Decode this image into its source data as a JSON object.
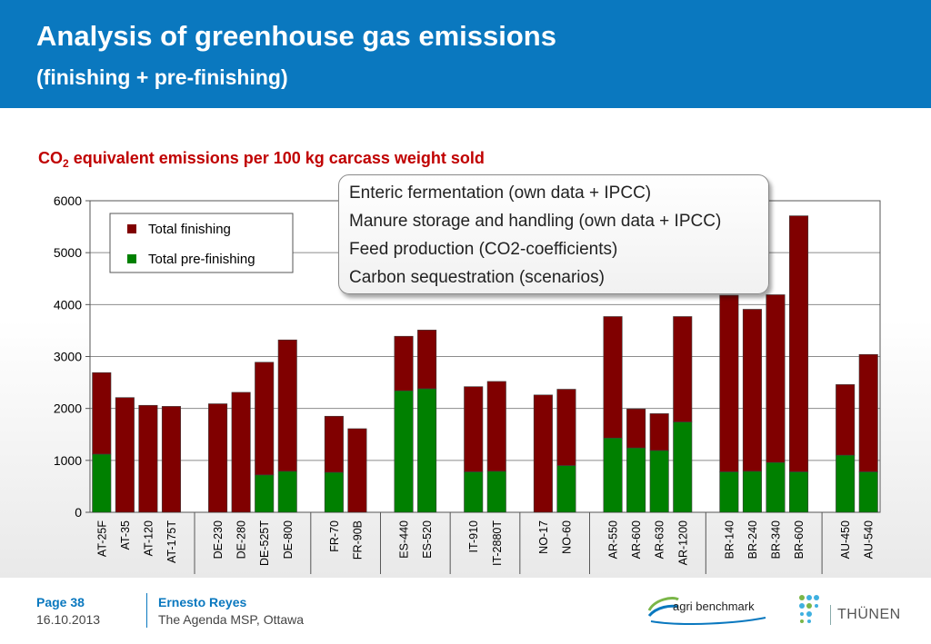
{
  "slide": {
    "title": "Analysis of greenhouse gas emissions",
    "subtitle": "(finishing + pre-finishing)"
  },
  "chart_data": {
    "type": "bar",
    "stacked": true,
    "title": "CO2 equivalent emissions per 100 kg carcass weight sold",
    "title_main": "CO",
    "title_sub": "2",
    "title_rest": " equivalent emissions per 100 kg carcass weight sold",
    "ylim": [
      0,
      6000
    ],
    "yticks": [
      0,
      1000,
      2000,
      3000,
      4000,
      5000,
      6000
    ],
    "grid": true,
    "legend_position": "top-left",
    "colors": {
      "pre_finishing": "#008000",
      "finishing": "#800000"
    },
    "groups": [
      [
        "AT-25F",
        "AT-35",
        "AT-120",
        "AT-175T"
      ],
      [
        "DE-230",
        "DE-280",
        "DE-525T",
        "DE-800"
      ],
      [
        "FR-70",
        "FR-90B"
      ],
      [
        "ES-440",
        "ES-520"
      ],
      [
        "IT-910",
        "IT-2880T"
      ],
      [
        "NO-17",
        "NO-60"
      ],
      [
        "AR-550",
        "AR-600",
        "AR-630",
        "AR-1200"
      ],
      [
        "BR-140",
        "BR-240",
        "BR-340",
        "BR-600"
      ],
      [
        "AU-450",
        "AU-540"
      ]
    ],
    "categories": [
      "AT-25F",
      "AT-35",
      "AT-120",
      "AT-175T",
      "DE-230",
      "DE-280",
      "DE-525T",
      "DE-800",
      "FR-70",
      "FR-90B",
      "ES-440",
      "ES-520",
      "IT-910",
      "IT-2880T",
      "NO-17",
      "NO-60",
      "AR-550",
      "AR-600",
      "AR-630",
      "AR-1200",
      "BR-140",
      "BR-240",
      "BR-340",
      "BR-600",
      "AU-450",
      "AU-540"
    ],
    "series": [
      {
        "name": "Total pre-finishing",
        "values": [
          1120,
          0,
          0,
          0,
          0,
          0,
          720,
          790,
          770,
          0,
          2340,
          2380,
          780,
          790,
          0,
          900,
          1430,
          1240,
          1190,
          1740,
          780,
          790,
          960,
          780,
          1100,
          780
        ]
      },
      {
        "name": "Total finishing",
        "values": [
          1570,
          2210,
          2060,
          2040,
          2090,
          2310,
          2170,
          2530,
          1080,
          1610,
          1050,
          1130,
          1640,
          1730,
          2260,
          1470,
          2340,
          750,
          710,
          2030,
          3400,
          3120,
          3230,
          4930,
          1360,
          2260
        ]
      }
    ],
    "totals": [
      2690,
      2210,
      2060,
      2040,
      2090,
      2310,
      2890,
      3320,
      1850,
      1610,
      3390,
      3510,
      2420,
      2520,
      2260,
      2370,
      3770,
      1990,
      1900,
      3770,
      4180,
      3910,
      4190,
      5710,
      2460,
      3040
    ],
    "annotation_lines": [
      "Enteric fermentation (own data + IPCC)",
      "Manure storage and handling (own data + IPCC)",
      "Feed production (CO2-coefficients)",
      "Carbon sequestration (scenarios)"
    ]
  },
  "footer": {
    "page": "Page 38",
    "date": "16.10.2013",
    "presenter": "Ernesto Reyes",
    "event": "The Agenda MSP, Ottawa",
    "logo_left": "agri benchmark",
    "logo_right": "THÜNEN"
  }
}
